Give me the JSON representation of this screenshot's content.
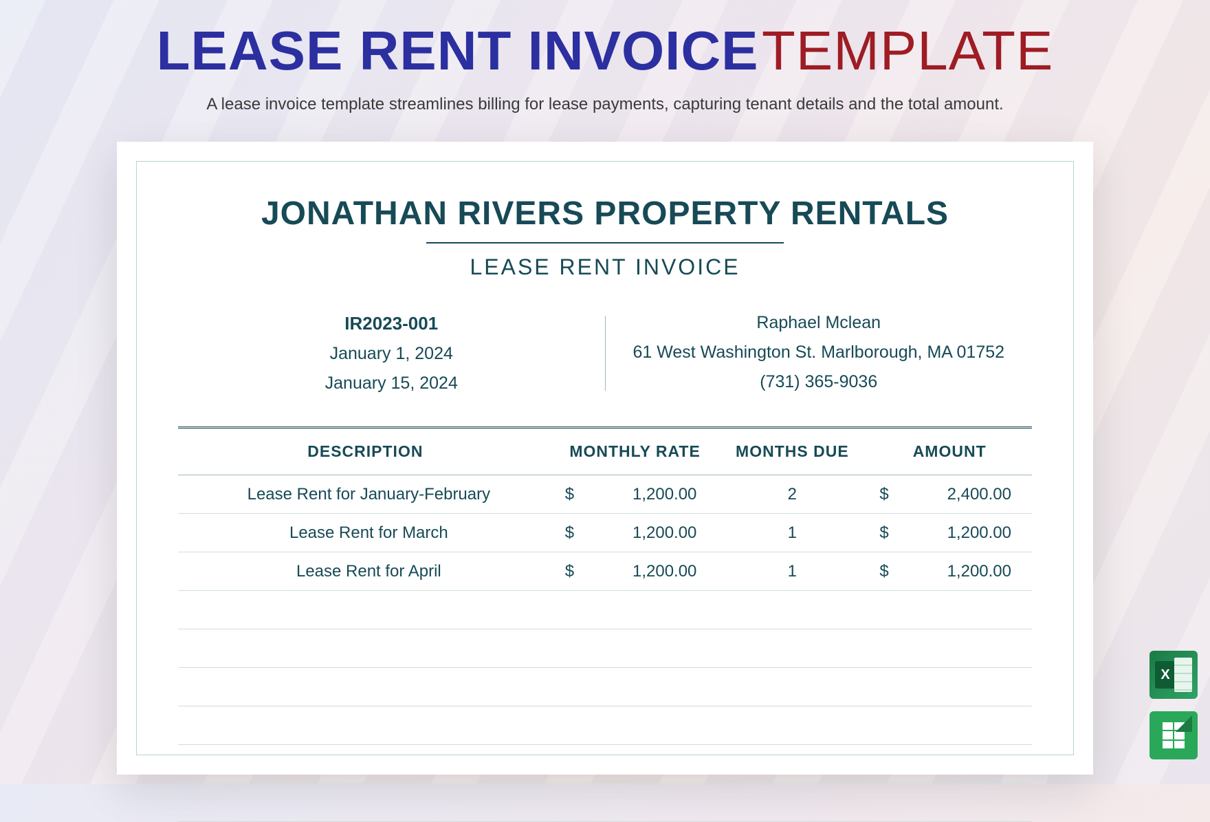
{
  "header": {
    "title_main": "LEASE RENT INVOICE",
    "title_suffix": "TEMPLATE",
    "subtitle": "A lease invoice template streamlines billing for lease payments, capturing tenant details and the total amount."
  },
  "document": {
    "company_name": "JONATHAN RIVERS PROPERTY RENTALS",
    "doc_title": "LEASE RENT INVOICE",
    "meta_left": {
      "invoice_no": "IR2023-001",
      "date1": "January 1, 2024",
      "date2": "January 15, 2024"
    },
    "meta_right": {
      "tenant_name": "Raphael Mclean",
      "address": "61 West Washington St. Marlborough, MA 01752",
      "phone": "(731) 365-9036"
    },
    "table": {
      "columns": [
        "DESCRIPTION",
        "MONTHLY RATE",
        "MONTHS DUE",
        "AMOUNT"
      ],
      "currency_symbol": "$",
      "rows": [
        {
          "desc": "Lease Rent for January-February",
          "rate": "1,200.00",
          "months": "2",
          "amount": "2,400.00"
        },
        {
          "desc": "Lease Rent for March",
          "rate": "1,200.00",
          "months": "1",
          "amount": "1,200.00"
        },
        {
          "desc": "Lease Rent for April",
          "rate": "1,200.00",
          "months": "1",
          "amount": "1,200.00"
        }
      ],
      "empty_rows": 6
    }
  },
  "colors": {
    "title_blue": "#2c2fa0",
    "title_red": "#9e1c24",
    "doc_text": "#174a56",
    "border_light": "#b8d4ce",
    "row_border": "#cfdedb"
  },
  "icons": {
    "excel_label": "excel-icon",
    "sheets_label": "google-sheets-icon"
  }
}
